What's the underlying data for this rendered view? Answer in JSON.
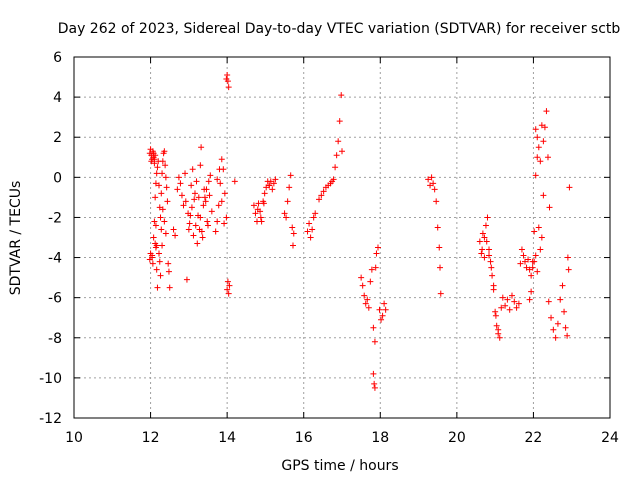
{
  "chart_data": {
    "type": "scatter",
    "title": "Day 262 of 2023, Sidereal Day-to-day VTEC variation (SDTVAR) for receiver sctb",
    "xlabel": "GPS time / hours",
    "ylabel": "SDTVAR / TECUs",
    "xlim": [
      10,
      24
    ],
    "ylim": [
      -12,
      6
    ],
    "xticks": [
      "10",
      "12",
      "14",
      "16",
      "18",
      "20",
      "22",
      "24"
    ],
    "yticks": [
      "6",
      "4",
      "2",
      "0",
      "-2",
      "-4",
      "-6",
      "-8",
      "-10",
      "-12"
    ],
    "grid": true,
    "marker": "+",
    "series_color": "#ff0000",
    "series": [
      {
        "name": "SDTVAR",
        "x": [
          11.98,
          12.0,
          12.02,
          12.04,
          12.06,
          12.08,
          12.1,
          12.12,
          12.14,
          12.16,
          12.18,
          11.98,
          12.0,
          12.02,
          12.04,
          12.06,
          12.08,
          12.1,
          12.12,
          12.14,
          12.16,
          12.04,
          12.08,
          12.1,
          12.12,
          12.14,
          12.16,
          12.18,
          12.2,
          12.22,
          12.24,
          12.26,
          12.28,
          12.3,
          12.32,
          12.34,
          12.36,
          12.38,
          12.4,
          12.42,
          12.44,
          12.46,
          12.48,
          12.5,
          12.22,
          12.24,
          12.26,
          12.28,
          12.3,
          12.32,
          12.36,
          12.4,
          12.6,
          12.64,
          12.7,
          12.74,
          12.78,
          12.82,
          12.86,
          12.9,
          12.95,
          12.92,
          12.98,
          13.02,
          13.06,
          13.1,
          13.14,
          13.18,
          13.22,
          13.26,
          13.3,
          13.0,
          13.04,
          13.08,
          13.12,
          13.16,
          13.2,
          13.24,
          13.28,
          13.32,
          13.36,
          13.4,
          13.44,
          13.48,
          13.52,
          13.56,
          13.6,
          13.38,
          13.42,
          13.46,
          13.5,
          13.54,
          13.3,
          13.34,
          13.7,
          13.74,
          13.78,
          13.82,
          13.86,
          13.9,
          13.94,
          13.98,
          13.74,
          13.8,
          13.86,
          13.92,
          13.98,
          14.0,
          14.02,
          14.04,
          14.06,
          14.0,
          14.02,
          14.04,
          14.2,
          14.7,
          14.74,
          14.78,
          14.82,
          14.86,
          14.9,
          14.94,
          14.98,
          15.02,
          15.06,
          15.1,
          14.8,
          14.88,
          14.96,
          15.1,
          15.14,
          15.18,
          15.22,
          15.26,
          15.5,
          15.54,
          15.58,
          15.62,
          15.66,
          15.7,
          15.72,
          15.74,
          16.1,
          16.14,
          16.18,
          16.22,
          16.26,
          16.3,
          16.4,
          16.46,
          16.52,
          16.58,
          16.64,
          16.7,
          16.74,
          16.78,
          16.82,
          16.86,
          16.9,
          16.94,
          16.98,
          17.0,
          17.5,
          17.54,
          17.58,
          17.62,
          17.66,
          17.7,
          17.74,
          17.78,
          17.82,
          17.86,
          17.9,
          17.94,
          17.98,
          18.02,
          18.06,
          18.1,
          18.14,
          17.82,
          17.84,
          17.86,
          17.88,
          19.25,
          19.3,
          19.34,
          19.38,
          19.42,
          19.46,
          19.5,
          19.54,
          19.56,
          19.58,
          20.6,
          20.64,
          20.68,
          20.72,
          20.76,
          20.8,
          20.84,
          20.88,
          20.92,
          20.96,
          21.0,
          21.04,
          21.08,
          21.12,
          21.16,
          20.66,
          20.72,
          20.78,
          20.84,
          20.9,
          20.96,
          21.02,
          21.08,
          21.2,
          21.26,
          21.32,
          21.38,
          21.44,
          21.5,
          21.56,
          21.62,
          21.66,
          21.7,
          21.74,
          21.78,
          21.82,
          21.86,
          21.9,
          21.94,
          21.98,
          22.02,
          22.06,
          22.1,
          21.9,
          21.94,
          21.98,
          22.02,
          22.06,
          22.1,
          22.14,
          22.18,
          22.22,
          22.26,
          22.06,
          22.1,
          22.14,
          22.18,
          22.22,
          22.26,
          22.3,
          22.34,
          22.38,
          22.42,
          22.4,
          22.46,
          22.52,
          22.58,
          22.64,
          22.7,
          22.76,
          22.8,
          22.84,
          22.88,
          22.9,
          22.92,
          22.94
        ],
        "y": [
          -4.1,
          -3.8,
          1.1,
          0.9,
          1.3,
          1.0,
          0.7,
          -3.3,
          -3.5,
          -4.6,
          -5.5,
          1.2,
          1.4,
          0.8,
          -3.9,
          -4.3,
          1.2,
          0.9,
          1.1,
          -2.4,
          -3.4,
          -4.0,
          -3.0,
          -2.2,
          -1.0,
          -0.3,
          0.2,
          0.5,
          0.8,
          -0.4,
          -1.5,
          -2.0,
          -0.8,
          0.2,
          0.8,
          1.2,
          1.3,
          0.6,
          0.0,
          -0.5,
          -1.2,
          -4.3,
          -4.7,
          -5.5,
          -3.8,
          -4.2,
          -4.9,
          -2.6,
          -3.4,
          -1.6,
          -2.2,
          -2.8,
          -2.6,
          -2.9,
          -0.6,
          0.0,
          -0.3,
          -0.9,
          -1.4,
          0.2,
          -5.1,
          -1.2,
          -1.8,
          -2.3,
          -0.4,
          0.4,
          -1.1,
          -2.4,
          -3.3,
          -1.0,
          0.6,
          -2.6,
          -1.9,
          -1.5,
          -2.9,
          -0.8,
          -0.2,
          -1.9,
          -2.6,
          1.5,
          -3.0,
          -0.6,
          -1.2,
          -2.2,
          -0.2,
          0.1,
          -1.7,
          -1.4,
          -1.0,
          -0.6,
          -2.4,
          -0.9,
          -2.0,
          -2.7,
          -2.7,
          -2.2,
          -1.4,
          -0.3,
          0.9,
          0.4,
          -0.8,
          -2.0,
          -0.1,
          0.4,
          -1.2,
          -2.3,
          4.9,
          5.1,
          4.8,
          4.5,
          -5.4,
          -5.6,
          -5.2,
          -5.8,
          -0.2,
          -1.4,
          -1.8,
          -2.2,
          -1.3,
          -1.7,
          -2.2,
          -1.2,
          -0.8,
          -0.5,
          -0.2,
          -0.4,
          -1.6,
          -2.0,
          -1.3,
          -0.4,
          -0.2,
          -0.6,
          -0.3,
          -0.1,
          -1.8,
          -2.0,
          -1.2,
          -0.5,
          0.1,
          -2.5,
          -3.4,
          -2.8,
          -2.7,
          -2.3,
          -3.0,
          -2.6,
          -2.0,
          -1.8,
          -1.1,
          -0.9,
          -0.7,
          -0.5,
          -0.4,
          -0.3,
          -0.2,
          -0.1,
          0.5,
          1.1,
          1.8,
          2.8,
          4.1,
          1.3,
          -5.0,
          -5.4,
          -5.9,
          -6.3,
          -6.1,
          -6.5,
          -5.2,
          -4.6,
          -7.5,
          -8.2,
          -3.8,
          -3.5,
          -6.6,
          -7.1,
          -6.9,
          -6.3,
          -6.6,
          -9.8,
          -10.3,
          -10.5,
          -4.5,
          -0.1,
          -0.4,
          0.0,
          -0.3,
          -0.6,
          -1.2,
          -2.5,
          -3.5,
          -4.5,
          -5.8,
          -3.2,
          -3.8,
          -2.8,
          -3.0,
          -2.4,
          -2.0,
          -3.6,
          -4.2,
          -4.9,
          -5.4,
          -6.7,
          -7.4,
          -7.8,
          -8.0,
          -6.5,
          -3.6,
          -4.0,
          -3.2,
          -3.9,
          -4.5,
          -5.6,
          -6.9,
          -7.6,
          -6.0,
          -6.4,
          -6.1,
          -6.6,
          -5.9,
          -6.2,
          -6.5,
          -6.3,
          -4.3,
          -3.6,
          -3.9,
          -4.2,
          -4.5,
          -4.1,
          -4.6,
          -4.9,
          -4.5,
          -4.2,
          -3.9,
          -4.7,
          -6.1,
          -5.7,
          -4.2,
          -2.7,
          0.1,
          1.0,
          -2.5,
          -3.6,
          -3.0,
          -0.9,
          2.4,
          2.0,
          1.5,
          0.8,
          2.6,
          1.8,
          2.5,
          3.3,
          1.0,
          -1.5,
          -6.2,
          -7.0,
          -7.6,
          -8.0,
          -7.3,
          -6.1,
          -5.4,
          -6.7,
          -7.5,
          -7.9,
          -4.0,
          -4.6,
          -0.5
        ]
      }
    ]
  }
}
